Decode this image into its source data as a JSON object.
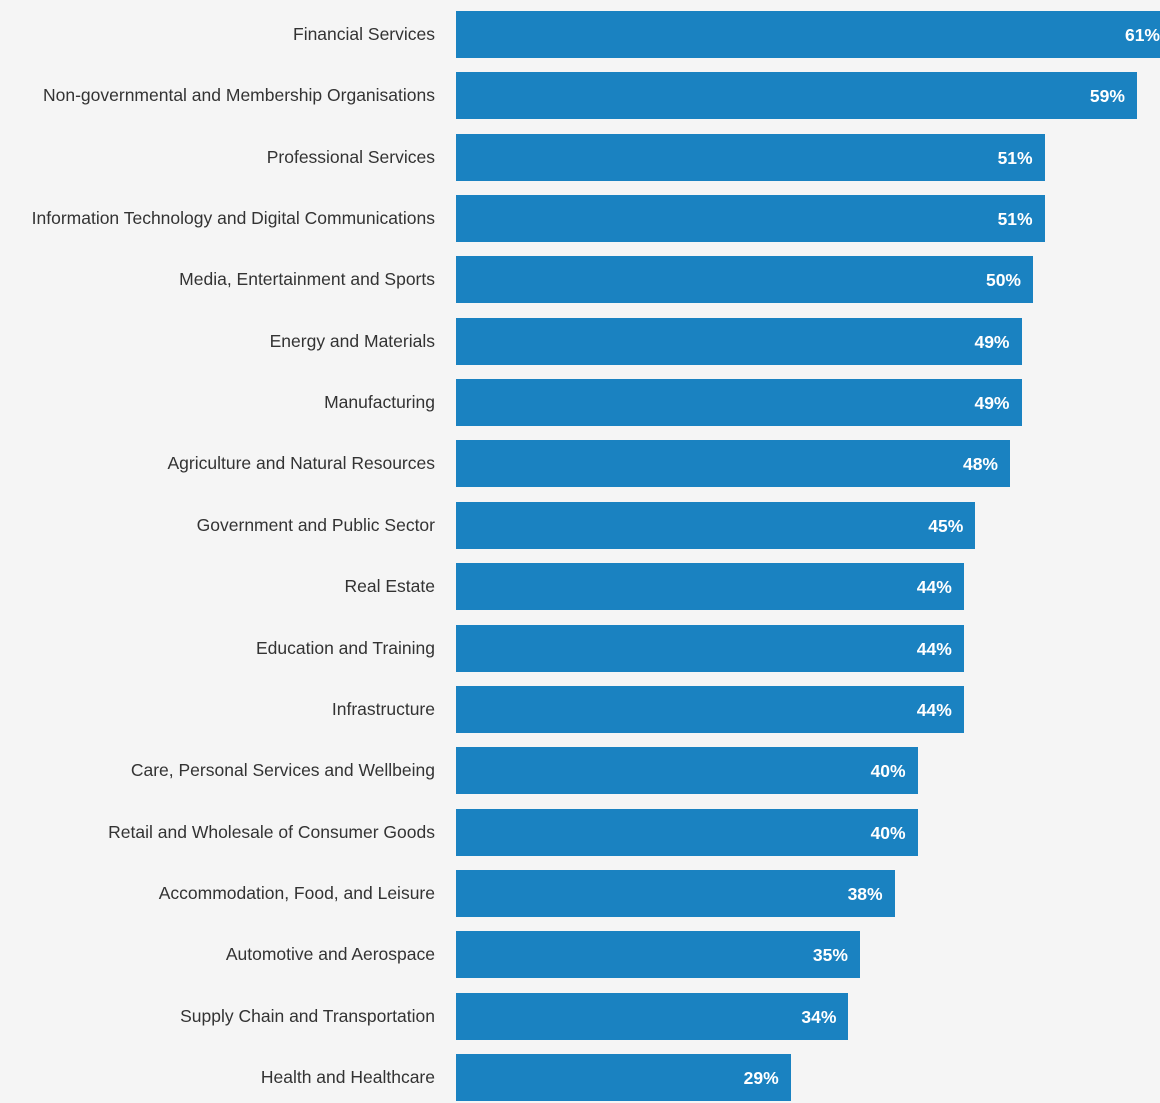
{
  "colors": {
    "bar": "#1a82c1",
    "background": "#f5f5f5",
    "label": "#333333",
    "value_label": "#ffffff"
  },
  "chart_data": {
    "type": "bar",
    "orientation": "horizontal",
    "categories": [
      "Financial Services",
      "Non-governmental and Membership Organisations",
      "Professional Services",
      "Information Technology and Digital Communications",
      "Media, Entertainment and Sports",
      "Energy and Materials",
      "Manufacturing",
      "Agriculture and Natural Resources",
      "Government and Public Sector",
      "Real Estate",
      "Education and Training",
      "Infrastructure",
      "Care, Personal Services and Wellbeing",
      "Retail and Wholesale of Consumer Goods",
      "Accommodation, Food, and Leisure",
      "Automotive and Aerospace",
      "Supply Chain and Transportation",
      "Health and Healthcare"
    ],
    "values": [
      61,
      59,
      51,
      51,
      50,
      49,
      49,
      48,
      45,
      44,
      44,
      44,
      40,
      40,
      38,
      35,
      34,
      29
    ],
    "value_labels": [
      "61%",
      "59%",
      "51%",
      "51%",
      "50%",
      "49%",
      "49%",
      "48%",
      "45%",
      "44%",
      "44%",
      "44%",
      "40%",
      "40%",
      "38%",
      "35%",
      "34%",
      "29%"
    ],
    "unit": "%",
    "title": "",
    "xlabel": "",
    "ylabel": "",
    "xlim": [
      0,
      61
    ],
    "grid": false,
    "legend": "none"
  }
}
